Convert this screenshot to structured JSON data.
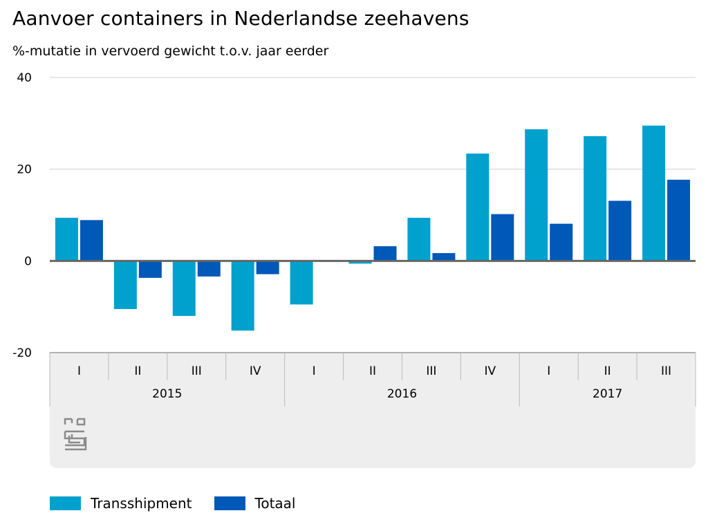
{
  "chart_data": {
    "type": "bar",
    "title": "Aanvoer containers in Nederlandse zeehavens",
    "subtitle": "%-mutatie in vervoerd gewicht t.o.v. jaar eerder",
    "categories": [
      "I",
      "II",
      "III",
      "IV",
      "I",
      "II",
      "III",
      "IV",
      "I",
      "II",
      "III"
    ],
    "groups": [
      {
        "label": "2015",
        "count": 4
      },
      {
        "label": "2016",
        "count": 4
      },
      {
        "label": "2017",
        "count": 3
      }
    ],
    "series": [
      {
        "name": "Transshipment",
        "color": "#00a1cd",
        "values": [
          9.4,
          -10.5,
          -12.0,
          -15.2,
          -9.5,
          -0.6,
          9.4,
          23.4,
          28.7,
          27.2,
          29.5
        ]
      },
      {
        "name": "Totaal",
        "color": "#0058b8",
        "values": [
          8.9,
          -3.7,
          -3.4,
          -2.9,
          0.0,
          3.2,
          1.7,
          10.2,
          8.1,
          13.1,
          17.7
        ]
      }
    ],
    "ylim": [
      -20,
      40
    ],
    "yticks": [
      40,
      20,
      0,
      -20
    ],
    "xlabel": "",
    "ylabel": ""
  },
  "logo": "cbs"
}
